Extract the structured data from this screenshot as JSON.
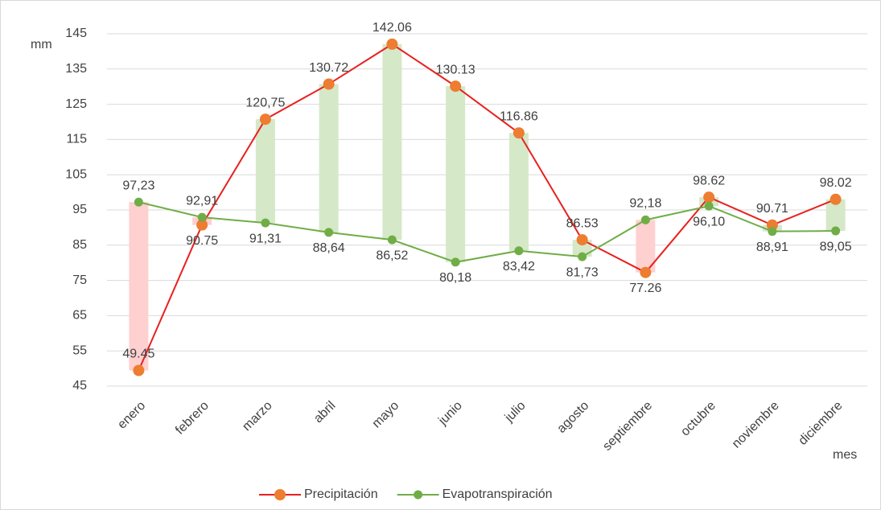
{
  "chart_data": {
    "type": "line",
    "y_label": "mm",
    "x_label": "mes",
    "categories": [
      "enero",
      "febrero",
      "marzo",
      "abril",
      "mayo",
      "junio",
      "julio",
      "agosto",
      "septiembre",
      "octubre",
      "noviembre",
      "diciembre"
    ],
    "series": [
      {
        "name": "Precipitación",
        "color": "#e8201e",
        "marker_color": "#ed7d31",
        "values": [
          49.45,
          90.75,
          120.75,
          130.72,
          142.06,
          130.13,
          116.86,
          86.53,
          77.26,
          98.62,
          90.71,
          98.02
        ],
        "value_labels": [
          "49.45",
          "90.75",
          "120,75",
          "130.72",
          "142.06",
          "130.13",
          "116.86",
          "86.53",
          "77.26",
          "98.62",
          "90.71",
          "98.02"
        ]
      },
      {
        "name": "Evapotranspiración",
        "color": "#70ad47",
        "marker_color": "#70ad47",
        "values": [
          97.23,
          92.91,
          91.31,
          88.64,
          86.52,
          80.18,
          83.42,
          81.73,
          92.18,
          96.1,
          88.91,
          89.05
        ],
        "value_labels": [
          "97,23",
          "92,91",
          "91,31",
          "88,64",
          "86,52",
          "80,18",
          "83,42",
          "81,73",
          "92,18",
          "96,10",
          "88,91",
          "89,05"
        ]
      }
    ],
    "up_down_bars": {
      "up_color": "#d5e8c8",
      "down_color": "#ffd0d0"
    },
    "ylim": [
      45,
      145
    ],
    "yticks": [
      45,
      55,
      65,
      75,
      85,
      95,
      105,
      115,
      125,
      135,
      145
    ],
    "grid": true,
    "legend": "bottom"
  }
}
